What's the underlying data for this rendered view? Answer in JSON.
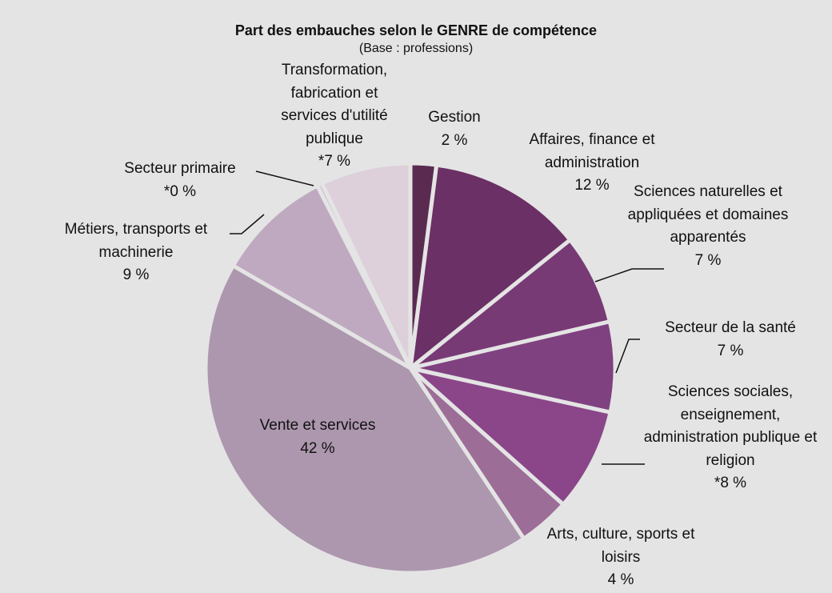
{
  "chart_data": {
    "type": "pie",
    "title": "Part des embauches selon le GENRE de compétence",
    "subtitle": "(Base : professions)",
    "categories": [
      "Gestion",
      "Affaires, finance et administration",
      "Sciences naturelles et appliquées et domaines apparentés",
      "Secteur de la santé",
      "Sciences sociales, enseignement, administration publique et religion",
      "Arts, culture, sports et loisirs",
      "Vente et services",
      "Métiers, transports et machinerie",
      "Secteur primaire",
      "Transformation, fabrication et services d'utilité publique"
    ],
    "values": [
      2,
      12,
      7,
      7,
      8,
      4,
      42,
      9,
      0.4,
      7
    ],
    "value_labels": [
      "2 %",
      "12 %",
      "7 %",
      "7 %",
      "*8 %",
      "4 %",
      "42 %",
      "9 %",
      "*0 %",
      "*7 %"
    ],
    "colors": [
      "#5b2a50",
      "#6b3065",
      "#773a75",
      "#7f4180",
      "#8a4689",
      "#9c6d97",
      "#ad97ae",
      "#bfa9c0",
      "#cfbfcf",
      "#ddd0da"
    ]
  }
}
